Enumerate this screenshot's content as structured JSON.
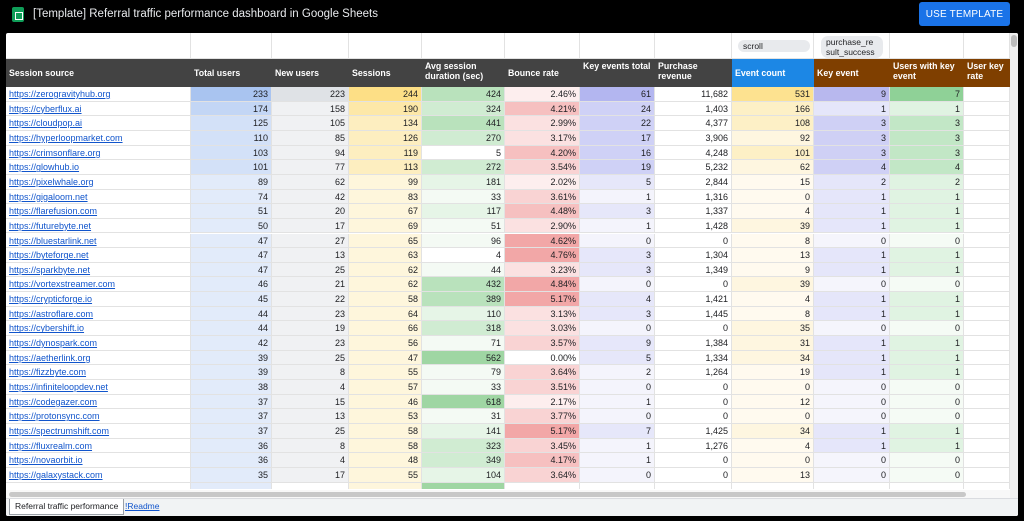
{
  "window": {
    "title": "[Template] Referral traffic performance dashboard in Google Sheets",
    "use_template_label": "USE TEMPLATE"
  },
  "filter_chips": {
    "scroll": "scroll",
    "purchase": "purchase_re sult_success"
  },
  "columns": [
    "Session source",
    "Total users",
    "New users",
    "Sessions",
    "Avg session duration (sec)",
    "Bounce rate",
    "Key events total",
    "Purchase revenue",
    "Event count",
    "Key event",
    "Users with key event",
    "User key rate"
  ],
  "rows": [
    [
      "https://zerogravityhub.org",
      "233",
      "223",
      "244",
      "424",
      "2.46%",
      "61",
      "11,682",
      "531",
      "9",
      "7",
      ""
    ],
    [
      "https://cyberflux.ai",
      "174",
      "158",
      "190",
      "324",
      "4.21%",
      "24",
      "1,403",
      "166",
      "1",
      "1",
      ""
    ],
    [
      "https://cloudpop.ai",
      "125",
      "105",
      "134",
      "441",
      "2.99%",
      "22",
      "4,377",
      "108",
      "3",
      "3",
      ""
    ],
    [
      "https://hyperloopmarket.com",
      "110",
      "85",
      "126",
      "270",
      "3.17%",
      "17",
      "3,906",
      "92",
      "3",
      "3",
      ""
    ],
    [
      "https://crimsonflare.org",
      "103",
      "94",
      "119",
      "5",
      "4.20%",
      "16",
      "4,248",
      "101",
      "3",
      "3",
      ""
    ],
    [
      "https://glowhub.io",
      "101",
      "77",
      "113",
      "272",
      "3.54%",
      "19",
      "5,232",
      "62",
      "4",
      "4",
      ""
    ],
    [
      "https://pixelwhale.org",
      "89",
      "62",
      "99",
      "181",
      "2.02%",
      "5",
      "2,844",
      "15",
      "2",
      "2",
      ""
    ],
    [
      "https://gigaloom.net",
      "74",
      "42",
      "83",
      "33",
      "3.61%",
      "1",
      "1,316",
      "0",
      "1",
      "1",
      ""
    ],
    [
      "https://flarefusion.com",
      "51",
      "20",
      "67",
      "117",
      "4.48%",
      "3",
      "1,337",
      "4",
      "1",
      "1",
      ""
    ],
    [
      "https://futurebyte.net",
      "50",
      "17",
      "69",
      "51",
      "2.90%",
      "1",
      "1,428",
      "39",
      "1",
      "1",
      ""
    ],
    [
      "https://bluestarlink.net",
      "47",
      "27",
      "65",
      "96",
      "4.62%",
      "0",
      "0",
      "8",
      "0",
      "0",
      ""
    ],
    [
      "https://byteforge.net",
      "47",
      "13",
      "63",
      "4",
      "4.76%",
      "3",
      "1,304",
      "13",
      "1",
      "1",
      ""
    ],
    [
      "https://sparkbyte.net",
      "47",
      "25",
      "62",
      "44",
      "3.23%",
      "3",
      "1,349",
      "9",
      "1",
      "1",
      ""
    ],
    [
      "https://vortexstreamer.com",
      "46",
      "21",
      "62",
      "432",
      "4.84%",
      "0",
      "0",
      "39",
      "0",
      "0",
      ""
    ],
    [
      "https://crypticforge.io",
      "45",
      "22",
      "58",
      "389",
      "5.17%",
      "4",
      "1,421",
      "4",
      "1",
      "1",
      ""
    ],
    [
      "https://astroflare.com",
      "44",
      "23",
      "64",
      "110",
      "3.13%",
      "3",
      "1,445",
      "8",
      "1",
      "1",
      ""
    ],
    [
      "https://cybershift.io",
      "44",
      "19",
      "66",
      "318",
      "3.03%",
      "0",
      "0",
      "35",
      "0",
      "0",
      ""
    ],
    [
      "https://dynospark.com",
      "42",
      "23",
      "56",
      "71",
      "3.57%",
      "9",
      "1,384",
      "31",
      "1",
      "1",
      ""
    ],
    [
      "https://aetherlink.org",
      "39",
      "25",
      "47",
      "562",
      "0.00%",
      "5",
      "1,334",
      "34",
      "1",
      "1",
      ""
    ],
    [
      "https://fizzbyte.com",
      "39",
      "8",
      "55",
      "79",
      "3.64%",
      "2",
      "1,264",
      "19",
      "1",
      "1",
      ""
    ],
    [
      "https://infiniteloopdev.net",
      "38",
      "4",
      "57",
      "33",
      "3.51%",
      "0",
      "0",
      "0",
      "0",
      "0",
      ""
    ],
    [
      "https://codegazer.com",
      "37",
      "15",
      "46",
      "618",
      "2.17%",
      "1",
      "0",
      "12",
      "0",
      "0",
      ""
    ],
    [
      "https://protonsync.com",
      "37",
      "13",
      "53",
      "31",
      "3.77%",
      "0",
      "0",
      "0",
      "0",
      "0",
      ""
    ],
    [
      "https://spectrumshift.com",
      "37",
      "25",
      "58",
      "141",
      "5.17%",
      "7",
      "1,425",
      "34",
      "1",
      "1",
      ""
    ],
    [
      "https://fluxrealm.com",
      "36",
      "8",
      "58",
      "323",
      "3.45%",
      "1",
      "1,276",
      "4",
      "1",
      "1",
      ""
    ],
    [
      "https://novaorbit.io",
      "36",
      "4",
      "48",
      "349",
      "4.17%",
      "1",
      "0",
      "0",
      "0",
      "0",
      ""
    ],
    [
      "https://galaxystack.com",
      "35",
      "17",
      "55",
      "104",
      "3.64%",
      "0",
      "0",
      "13",
      "0",
      "0",
      ""
    ]
  ],
  "sheet_tabs": {
    "active": "Referral traffic performance",
    "other": "!Readme"
  },
  "colors": {
    "header_dark": "#434343",
    "header_brown": "#7f3f00",
    "header_blue": "#1c87e5",
    "link": "#1155cc",
    "use_template_button": "#1a73e8"
  }
}
